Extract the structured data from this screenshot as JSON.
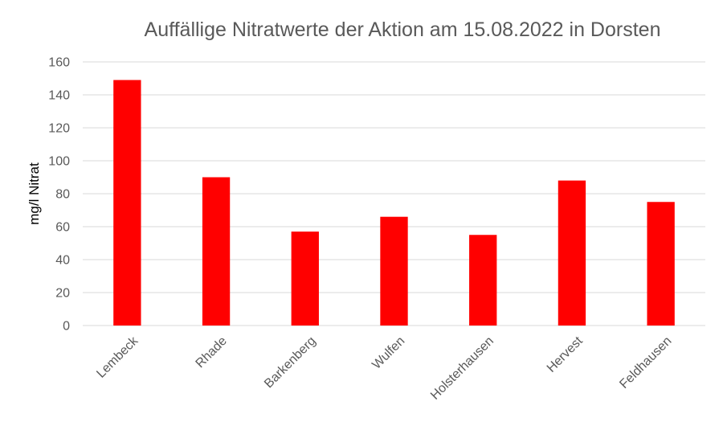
{
  "chart_data": {
    "type": "bar",
    "title": "Auffällige Nitratwerte der Aktion am 15.08.2022 in Dorsten",
    "xlabel": "",
    "ylabel": "mg/l Nitrat",
    "categories": [
      "Lembeck",
      "Rhade",
      "Barkenberg",
      "Wulfen",
      "Holsterhausen",
      "Hervest",
      "Feldhausen"
    ],
    "values": [
      149,
      90,
      57,
      66,
      55,
      88,
      75
    ],
    "ylim": [
      0,
      160
    ],
    "yticks": [
      0,
      20,
      40,
      60,
      80,
      100,
      120,
      140,
      160
    ],
    "grid": true,
    "legend": "none",
    "bar_color": "#ff0000"
  }
}
